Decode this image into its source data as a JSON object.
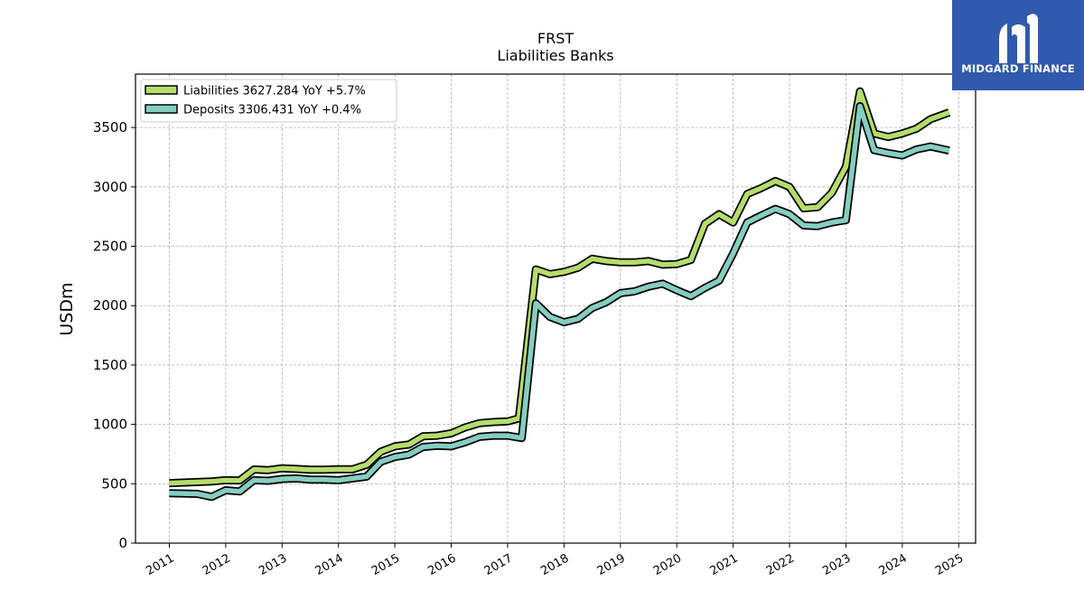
{
  "chart_data": {
    "type": "line",
    "title": "FRST",
    "subtitle": "Liabilities Banks",
    "ylabel": "USDm",
    "xlabel": "",
    "ylim": [
      0,
      3950
    ],
    "xlim": [
      2010.4,
      2025.3
    ],
    "yticks": [
      0,
      500,
      1000,
      1500,
      2000,
      2500,
      3000,
      3500
    ],
    "xticks": [
      "2011",
      "2012",
      "2013",
      "2014",
      "2015",
      "2016",
      "2017",
      "2018",
      "2019",
      "2020",
      "2021",
      "2022",
      "2023",
      "2024",
      "2025"
    ],
    "grid": true,
    "legend_position": "top-left",
    "series": [
      {
        "name": "Liabilities",
        "legend_label": "Liabilities  3627.284 YoY +5.7%",
        "color": "#b5dd6b",
        "points": [
          [
            2011.0,
            505
          ],
          [
            2011.75,
            520
          ],
          [
            2012.0,
            530
          ],
          [
            2012.25,
            528
          ],
          [
            2012.5,
            620
          ],
          [
            2012.75,
            615
          ],
          [
            2013.0,
            630
          ],
          [
            2013.25,
            625
          ],
          [
            2013.5,
            618
          ],
          [
            2013.75,
            618
          ],
          [
            2014.0,
            622
          ],
          [
            2014.25,
            622
          ],
          [
            2014.5,
            660
          ],
          [
            2014.75,
            770
          ],
          [
            2015.0,
            815
          ],
          [
            2015.25,
            830
          ],
          [
            2015.5,
            900
          ],
          [
            2015.75,
            905
          ],
          [
            2016.0,
            925
          ],
          [
            2016.25,
            975
          ],
          [
            2016.5,
            1010
          ],
          [
            2016.75,
            1020
          ],
          [
            2017.0,
            1025
          ],
          [
            2017.2,
            1050
          ],
          [
            2017.5,
            2305
          ],
          [
            2017.75,
            2265
          ],
          [
            2018.0,
            2285
          ],
          [
            2018.25,
            2320
          ],
          [
            2018.5,
            2395
          ],
          [
            2018.75,
            2375
          ],
          [
            2019.0,
            2365
          ],
          [
            2019.25,
            2365
          ],
          [
            2019.5,
            2375
          ],
          [
            2019.75,
            2345
          ],
          [
            2020.0,
            2350
          ],
          [
            2020.25,
            2385
          ],
          [
            2020.5,
            2690
          ],
          [
            2020.75,
            2770
          ],
          [
            2021.0,
            2700
          ],
          [
            2021.25,
            2940
          ],
          [
            2021.5,
            2990
          ],
          [
            2021.75,
            3050
          ],
          [
            2022.0,
            3000
          ],
          [
            2022.25,
            2820
          ],
          [
            2022.5,
            2830
          ],
          [
            2022.75,
            2950
          ],
          [
            2023.0,
            3170
          ],
          [
            2023.25,
            3805
          ],
          [
            2023.5,
            3450
          ],
          [
            2023.75,
            3420
          ],
          [
            2024.0,
            3450
          ],
          [
            2024.25,
            3490
          ],
          [
            2024.5,
            3570
          ],
          [
            2024.83,
            3627.284
          ]
        ]
      },
      {
        "name": "Deposits",
        "legend_label": "Deposits  3306.431 YoY +0.4%",
        "color": "#84cec1",
        "points": [
          [
            2011.0,
            420
          ],
          [
            2011.5,
            415
          ],
          [
            2011.75,
            390
          ],
          [
            2012.0,
            445
          ],
          [
            2012.25,
            435
          ],
          [
            2012.5,
            530
          ],
          [
            2012.75,
            525
          ],
          [
            2013.0,
            540
          ],
          [
            2013.25,
            545
          ],
          [
            2013.5,
            535
          ],
          [
            2013.75,
            535
          ],
          [
            2014.0,
            530
          ],
          [
            2014.25,
            545
          ],
          [
            2014.5,
            560
          ],
          [
            2014.75,
            685
          ],
          [
            2015.0,
            725
          ],
          [
            2015.25,
            745
          ],
          [
            2015.5,
            810
          ],
          [
            2015.75,
            820
          ],
          [
            2016.0,
            815
          ],
          [
            2016.25,
            850
          ],
          [
            2016.5,
            895
          ],
          [
            2016.75,
            905
          ],
          [
            2017.0,
            905
          ],
          [
            2017.25,
            885
          ],
          [
            2017.5,
            2020
          ],
          [
            2017.75,
            1905
          ],
          [
            2018.0,
            1860
          ],
          [
            2018.25,
            1890
          ],
          [
            2018.5,
            1980
          ],
          [
            2018.75,
            2030
          ],
          [
            2019.0,
            2105
          ],
          [
            2019.25,
            2120
          ],
          [
            2019.5,
            2160
          ],
          [
            2019.75,
            2185
          ],
          [
            2020.0,
            2130
          ],
          [
            2020.25,
            2080
          ],
          [
            2020.5,
            2150
          ],
          [
            2020.75,
            2210
          ],
          [
            2021.0,
            2440
          ],
          [
            2021.25,
            2700
          ],
          [
            2021.5,
            2760
          ],
          [
            2021.75,
            2815
          ],
          [
            2022.0,
            2770
          ],
          [
            2022.25,
            2675
          ],
          [
            2022.5,
            2670
          ],
          [
            2022.75,
            2700
          ],
          [
            2023.0,
            2720
          ],
          [
            2023.25,
            3680
          ],
          [
            2023.5,
            3310
          ],
          [
            2023.75,
            3285
          ],
          [
            2024.0,
            3265
          ],
          [
            2024.25,
            3315
          ],
          [
            2024.5,
            3340
          ],
          [
            2024.83,
            3306.431
          ]
        ]
      }
    ]
  },
  "logo": {
    "text": "MIDGARD FINANCE",
    "background": "#2f5aad"
  }
}
